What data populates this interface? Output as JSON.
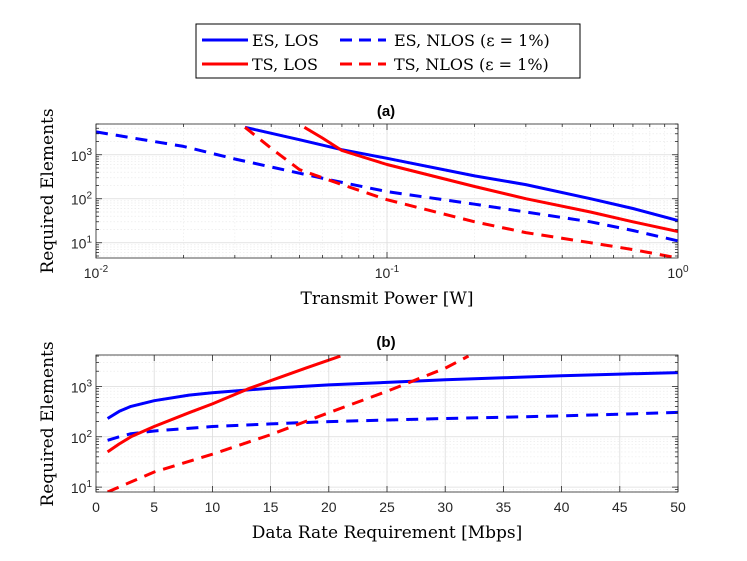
{
  "legend": {
    "entries": [
      {
        "label": "ES, LOS",
        "color": "#0000ff",
        "dash": "solid"
      },
      {
        "label": "ES, NLOS (ε = 1%)",
        "color": "#0000ff",
        "dash": "dashed"
      },
      {
        "label": "TS, LOS",
        "color": "#ff0000",
        "dash": "solid"
      },
      {
        "label": "TS, NLOS (ε = 1%)",
        "color": "#ff0000",
        "dash": "dashed"
      }
    ],
    "placement": "top-center"
  },
  "chart_data": [
    {
      "type": "line",
      "title": "(a)",
      "xlabel": "Transmit Power [W]",
      "ylabel": "Required Elements",
      "xscale": "log",
      "yscale": "log",
      "xlim": [
        0.01,
        1
      ],
      "ylim": [
        4.5,
        5000
      ],
      "xticks": [
        0.01,
        0.1,
        1
      ],
      "xtick_labels": [
        "10^-2",
        "10^-1",
        "10^0"
      ],
      "yticks": [
        10,
        100,
        1000
      ],
      "ytick_labels": [
        "10^1",
        "10^2",
        "10^3"
      ],
      "grid": true,
      "series": [
        {
          "name": "ES, LOS",
          "color": "#0000ff",
          "dash": "solid",
          "x": [
            0.0325,
            0.05,
            0.07,
            0.1,
            0.2,
            0.3,
            0.5,
            0.7,
            1.0
          ],
          "y": [
            4200,
            2200,
            1300,
            830,
            330,
            210,
            100,
            60,
            32
          ]
        },
        {
          "name": "ES, NLOS (ε = 1%)",
          "color": "#0000ff",
          "dash": "dashed",
          "x": [
            0.01,
            0.02,
            0.03,
            0.05,
            0.07,
            0.1,
            0.2,
            0.3,
            0.5,
            0.7,
            1.0
          ],
          "y": [
            3300,
            1550,
            800,
            380,
            235,
            145,
            75,
            50,
            30,
            19,
            11
          ]
        },
        {
          "name": "TS, LOS",
          "color": "#ff0000",
          "dash": "solid",
          "x": [
            0.052,
            0.06,
            0.07,
            0.1,
            0.2,
            0.3,
            0.5,
            0.7,
            1.0
          ],
          "y": [
            4200,
            2400,
            1250,
            600,
            190,
            100,
            50,
            30,
            18
          ]
        },
        {
          "name": "TS, NLOS (ε = 1%)",
          "color": "#ff0000",
          "dash": "dashed",
          "x": [
            0.0325,
            0.04,
            0.05,
            0.07,
            0.1,
            0.2,
            0.3,
            0.5,
            0.7,
            1.0
          ],
          "y": [
            4200,
            1400,
            460,
            210,
            95,
            30,
            17,
            10,
            7,
            4.5
          ]
        }
      ]
    },
    {
      "type": "line",
      "title": "(b)",
      "xlabel": "Data Rate Requirement [Mbps]",
      "ylabel": "Required Elements",
      "xscale": "linear",
      "yscale": "log",
      "xlim": [
        0,
        50
      ],
      "ylim": [
        8,
        4200
      ],
      "xticks": [
        0,
        5,
        10,
        15,
        20,
        25,
        30,
        35,
        40,
        45,
        50
      ],
      "xtick_labels": [
        "0",
        "5",
        "10",
        "15",
        "20",
        "25",
        "30",
        "35",
        "40",
        "45",
        "50"
      ],
      "yticks": [
        10,
        100,
        1000
      ],
      "ytick_labels": [
        "10^1",
        "10^2",
        "10^3"
      ],
      "grid": true,
      "series": [
        {
          "name": "ES, LOS",
          "color": "#0000ff",
          "dash": "solid",
          "x": [
            1,
            2,
            3,
            5,
            8,
            10,
            15,
            20,
            25,
            30,
            35,
            40,
            45,
            50
          ],
          "y": [
            230,
            320,
            400,
            520,
            670,
            750,
            920,
            1070,
            1200,
            1350,
            1480,
            1620,
            1750,
            1880
          ]
        },
        {
          "name": "ES, NLOS (ε = 1%)",
          "color": "#0000ff",
          "dash": "dashed",
          "x": [
            1,
            2,
            3,
            5,
            10,
            15,
            20,
            25,
            30,
            35,
            40,
            45,
            50
          ],
          "y": [
            85,
            100,
            115,
            130,
            160,
            180,
            200,
            215,
            230,
            245,
            260,
            280,
            305
          ]
        },
        {
          "name": "TS, LOS",
          "color": "#ff0000",
          "dash": "solid",
          "x": [
            1,
            2,
            3,
            5,
            8,
            10,
            13,
            15,
            18,
            21
          ],
          "y": [
            50,
            72,
            100,
            160,
            300,
            450,
            880,
            1300,
            2300,
            4000
          ]
        },
        {
          "name": "TS, NLOS (ε = 1%)",
          "color": "#ff0000",
          "dash": "dashed",
          "x": [
            1,
            5,
            10,
            15,
            20,
            25,
            30,
            32
          ],
          "y": [
            8,
            20,
            45,
            110,
            300,
            800,
            2300,
            4000
          ]
        }
      ]
    }
  ]
}
